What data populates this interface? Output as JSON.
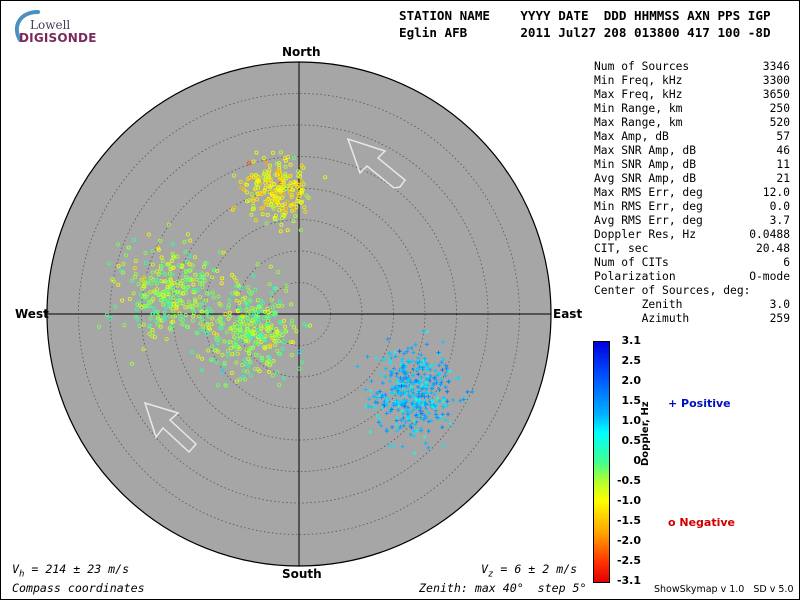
{
  "logo": {
    "line1": "Lowell",
    "line2": "DIGISONDE"
  },
  "header": {
    "labels": "STATION NAME    YYYY DATE  DDD HHMMSS AXN PPS IGP",
    "values": "Eglin AFB       2011 Jul27 208 013800 417 100 -8D"
  },
  "stats": [
    {
      "label": "Num of Sources",
      "value": "3346"
    },
    {
      "label": "Min Freq, kHz",
      "value": "3300"
    },
    {
      "label": "Max Freq, kHz",
      "value": "3650"
    },
    {
      "label": "Min Range, km",
      "value": "250"
    },
    {
      "label": "Max Range, km",
      "value": "520"
    },
    {
      "label": "Max Amp, dB",
      "value": "57"
    },
    {
      "label": "Max SNR Amp, dB",
      "value": "46"
    },
    {
      "label": "Min SNR Amp, dB",
      "value": "11"
    },
    {
      "label": "Avg SNR Amp, dB",
      "value": "21"
    },
    {
      "label": "Max RMS Err, deg",
      "value": "12.0"
    },
    {
      "label": "Min RMS Err, deg",
      "value": "0.0"
    },
    {
      "label": "Avg RMS Err, deg",
      "value": "3.7"
    },
    {
      "label": "Doppler Res, Hz",
      "value": "0.0488"
    },
    {
      "label": "CIT, sec",
      "value": "20.48"
    },
    {
      "label": "Num of CITs",
      "value": "6"
    },
    {
      "label": "Polarization",
      "value": "O-mode"
    },
    {
      "label": "Center of Sources, deg:",
      "value": ""
    },
    {
      "label": "       Zenith",
      "value": "3.0"
    },
    {
      "label": "       Azimuth",
      "value": "259"
    }
  ],
  "compass": {
    "north": "North",
    "south": "South",
    "east": "East",
    "west": "West"
  },
  "footer": {
    "vh": "V",
    "vh_sub": "h",
    "vh_value": " = 214 ± 23 m/s",
    "vz": "V",
    "vz_sub": "z",
    "vz_value": " = 6 ± 2 m/s",
    "coords": "Compass coordinates",
    "zenith": "Zenith: max 40°  step 5°",
    "version": "ShowSkymap v 1.0   SD v 5.0"
  },
  "colorbar": {
    "title": "Doppler, Hz",
    "ticks": [
      "3.1",
      "2.5",
      "2.0",
      "1.5",
      "1.0",
      "0.5",
      "0",
      "-0.5",
      "-1.0",
      "-1.5",
      "-2.0",
      "-2.5",
      "-3.1"
    ],
    "positive_label": "+ Positive",
    "negative_label": "o Negative"
  },
  "colors": {
    "plot_background": "#a6a6a6",
    "yellow": "#ffff00",
    "green": "#9cff40",
    "cyan": "#00ffff",
    "blue": "#0080ff"
  },
  "chart_data": {
    "type": "scatter",
    "title": "",
    "xlabel": "",
    "ylabel": "",
    "projection": "polar sky map",
    "zenith_max_deg": 40,
    "zenith_step_deg": 5,
    "clusters": [
      {
        "name": "",
        "marker": "o",
        "azimuth_deg": 350,
        "zenith_deg": 20,
        "spread_deg": 5,
        "doppler_hz": -1.0,
        "approx_count": 600
      },
      {
        "name": "",
        "marker": "o",
        "azimuth_deg": 280,
        "zenith_deg": 21,
        "spread_deg": 7,
        "doppler_hz": -0.4,
        "approx_count": 800
      },
      {
        "name": "",
        "marker": "o",
        "azimuth_deg": 250,
        "zenith_deg": 8,
        "spread_deg": 7,
        "doppler_hz": -0.3,
        "approx_count": 900
      },
      {
        "name": "",
        "marker": "+",
        "azimuth_deg": 125,
        "zenith_deg": 22,
        "spread_deg": 6,
        "doppler_hz": 1.2,
        "approx_count": 1000
      }
    ]
  }
}
